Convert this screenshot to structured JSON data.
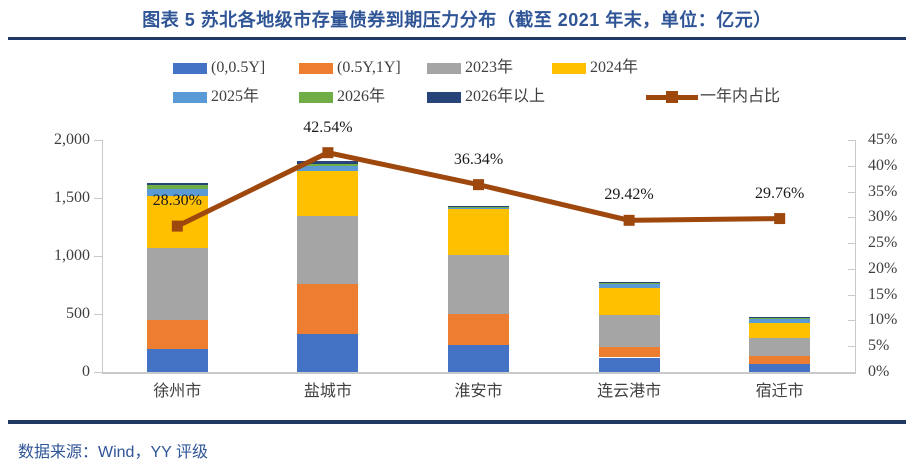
{
  "header": {
    "title": "图表 5 苏北各地级市存量债券到期压力分布（截至 2021 年末，单位：亿元）"
  },
  "footer": {
    "source": "数据来源：Wind，YY 评级"
  },
  "chart_data": {
    "type": "bar",
    "subtype": "stacked-bar-with-line",
    "title": "图表 5 苏北各地级市存量债券到期压力分布（截至 2021 年末，单位：亿元）",
    "categories": [
      "徐州市",
      "盐城市",
      "淮安市",
      "连云港市",
      "宿迁市"
    ],
    "series": [
      {
        "name": "(0,0.5Y]",
        "color": "#4472C4",
        "values": [
          200,
          330,
          230,
          125,
          65
        ]
      },
      {
        "name": "(0.5Y,1Y]",
        "color": "#ED7D31",
        "values": [
          250,
          430,
          270,
          90,
          75
        ]
      },
      {
        "name": "2023年",
        "color": "#A5A5A5",
        "values": [
          615,
          585,
          510,
          275,
          155
        ]
      },
      {
        "name": "2024年",
        "color": "#FFC000",
        "values": [
          450,
          385,
          395,
          235,
          130
        ]
      },
      {
        "name": "2025年",
        "color": "#5B9BD5",
        "values": [
          65,
          45,
          15,
          35,
          35
        ]
      },
      {
        "name": "2026年",
        "color": "#70AD47",
        "values": [
          35,
          20,
          5,
          10,
          15
        ]
      },
      {
        "name": "2026年以上",
        "color": "#264478",
        "values": [
          17,
          20,
          5,
          10,
          3
        ]
      }
    ],
    "line_series": {
      "name": "一年内占比",
      "color": "#9E480E",
      "values_pct": [
        28.3,
        42.54,
        36.34,
        29.42,
        29.76
      ],
      "labels": [
        "28.30%",
        "42.54%",
        "36.34%",
        "29.42%",
        "29.76%"
      ]
    },
    "left_axis": {
      "min": 0,
      "max": 2000,
      "ticks": [
        "2,000",
        "1,500",
        "1,000",
        "500",
        "0"
      ]
    },
    "right_axis": {
      "min": 0,
      "max": 45,
      "ticks": [
        "45%",
        "40%",
        "35%",
        "30%",
        "25%",
        "20%",
        "15%",
        "10%",
        "5%",
        "0%"
      ]
    },
    "grid": "off",
    "legend_position": "top"
  }
}
